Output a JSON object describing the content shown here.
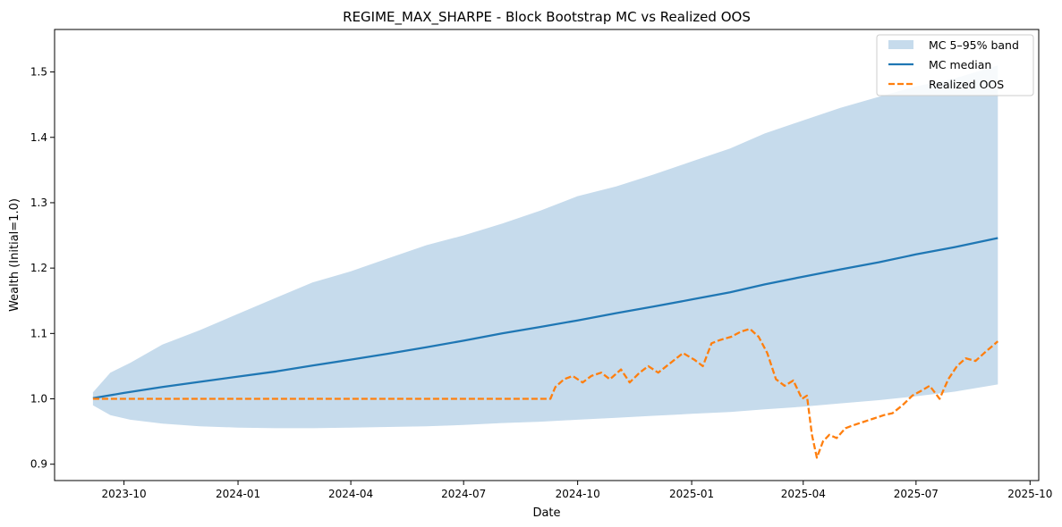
{
  "chart_data": {
    "type": "line",
    "title": "REGIME_MAX_SHARPE - Block Bootstrap MC vs Realized OOS",
    "xlabel": "Date",
    "ylabel": "Wealth (Initial=1.0)",
    "xlim": [
      "2023-08-06",
      "2025-10-08"
    ],
    "ylim": [
      0.875,
      1.565
    ],
    "grid": false,
    "legend_position": "top-right",
    "x_ticks": [
      "2023-10",
      "2024-01",
      "2024-04",
      "2024-07",
      "2024-10",
      "2025-01",
      "2025-04",
      "2025-07",
      "2025-10"
    ],
    "y_ticks": [
      0.9,
      1.0,
      1.1,
      1.2,
      1.3,
      1.4,
      1.5
    ],
    "colors": {
      "band": "#c6dbec",
      "median": "#1f77b4",
      "realized": "#ff7f0e"
    },
    "series": [
      {
        "name": "MC 5–95% band",
        "kind": "band",
        "x": [
          "2023-09-06",
          "2023-09-20",
          "2023-10-06",
          "2023-11-01",
          "2023-12-01",
          "2024-01-01",
          "2024-02-01",
          "2024-03-01",
          "2024-04-01",
          "2024-05-01",
          "2024-06-01",
          "2024-07-01",
          "2024-08-01",
          "2024-09-01",
          "2024-10-01",
          "2024-11-01",
          "2024-12-01",
          "2025-01-01",
          "2025-02-01",
          "2025-03-01",
          "2025-04-01",
          "2025-05-01",
          "2025-06-01",
          "2025-07-01",
          "2025-08-01",
          "2025-09-05"
        ],
        "lower": [
          0.99,
          0.975,
          0.968,
          0.962,
          0.958,
          0.956,
          0.955,
          0.955,
          0.956,
          0.957,
          0.958,
          0.96,
          0.963,
          0.965,
          0.968,
          0.971,
          0.974,
          0.977,
          0.98,
          0.984,
          0.988,
          0.993,
          0.998,
          1.004,
          1.011,
          1.022
        ],
        "upper": [
          1.01,
          1.04,
          1.055,
          1.083,
          1.105,
          1.13,
          1.155,
          1.178,
          1.195,
          1.215,
          1.235,
          1.25,
          1.268,
          1.288,
          1.31,
          1.325,
          1.343,
          1.363,
          1.383,
          1.406,
          1.426,
          1.445,
          1.462,
          1.478,
          1.49,
          1.51
        ]
      },
      {
        "name": "MC median",
        "kind": "line",
        "x": [
          "2023-09-06",
          "2023-10-01",
          "2023-11-01",
          "2023-12-01",
          "2024-01-01",
          "2024-02-01",
          "2024-03-01",
          "2024-04-01",
          "2024-05-01",
          "2024-06-01",
          "2024-07-01",
          "2024-08-01",
          "2024-09-01",
          "2024-10-01",
          "2024-11-01",
          "2024-12-01",
          "2025-01-01",
          "2025-02-01",
          "2025-03-01",
          "2025-04-01",
          "2025-05-01",
          "2025-06-01",
          "2025-07-01",
          "2025-08-01",
          "2025-09-05"
        ],
        "values": [
          1.001,
          1.009,
          1.018,
          1.026,
          1.034,
          1.042,
          1.051,
          1.06,
          1.069,
          1.079,
          1.089,
          1.1,
          1.11,
          1.12,
          1.131,
          1.141,
          1.152,
          1.163,
          1.175,
          1.187,
          1.198,
          1.209,
          1.221,
          1.232,
          1.246
        ]
      },
      {
        "name": "Realized OOS",
        "kind": "line",
        "dashed": true,
        "x": [
          "2023-09-06",
          "2024-09-09",
          "2024-09-13",
          "2024-09-20",
          "2024-09-27",
          "2024-10-05",
          "2024-10-12",
          "2024-10-20",
          "2024-10-27",
          "2024-11-05",
          "2024-11-12",
          "2024-11-20",
          "2024-11-27",
          "2024-12-05",
          "2024-12-15",
          "2024-12-25",
          "2025-01-03",
          "2025-01-10",
          "2025-01-17",
          "2025-01-24",
          "2025-02-02",
          "2025-02-10",
          "2025-02-17",
          "2025-02-24",
          "2025-03-03",
          "2025-03-10",
          "2025-03-17",
          "2025-03-24",
          "2025-03-31",
          "2025-04-04",
          "2025-04-08",
          "2025-04-12",
          "2025-04-17",
          "2025-04-22",
          "2025-04-28",
          "2025-05-05",
          "2025-05-12",
          "2025-05-20",
          "2025-05-28",
          "2025-06-05",
          "2025-06-12",
          "2025-06-20",
          "2025-06-28",
          "2025-07-05",
          "2025-07-12",
          "2025-07-20",
          "2025-07-27",
          "2025-08-03",
          "2025-08-10",
          "2025-08-18",
          "2025-08-25",
          "2025-09-05"
        ],
        "values": [
          1.0,
          1.0,
          1.018,
          1.03,
          1.035,
          1.025,
          1.035,
          1.04,
          1.03,
          1.045,
          1.025,
          1.04,
          1.05,
          1.04,
          1.055,
          1.07,
          1.06,
          1.05,
          1.085,
          1.09,
          1.095,
          1.103,
          1.107,
          1.095,
          1.07,
          1.03,
          1.02,
          1.028,
          1.0,
          1.005,
          0.945,
          0.91,
          0.935,
          0.945,
          0.94,
          0.955,
          0.96,
          0.965,
          0.97,
          0.975,
          0.978,
          0.99,
          1.005,
          1.012,
          1.02,
          1.0,
          1.03,
          1.05,
          1.062,
          1.058,
          1.07,
          1.088
        ]
      }
    ]
  }
}
